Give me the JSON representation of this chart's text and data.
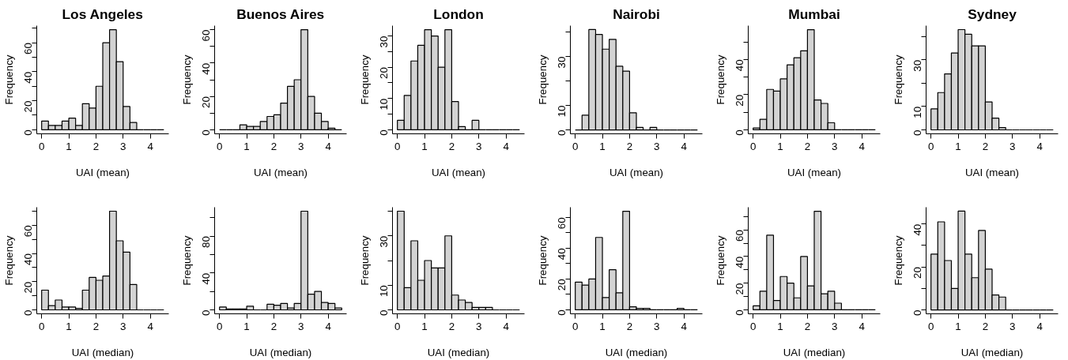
{
  "chart_data": [
    {
      "type": "histogram",
      "title": "Los Angeles",
      "xlabel": "UAI (mean)",
      "ylabel": "Frequency",
      "bins": [
        0,
        0.25,
        0.5,
        0.75,
        1,
        1.25,
        1.5,
        1.75,
        2,
        2.25,
        2.5,
        2.75,
        3,
        3.25,
        3.5,
        3.75,
        4,
        4.25,
        4.5
      ],
      "values": [
        6,
        3,
        3,
        6,
        8,
        3,
        18,
        15,
        30,
        60,
        69,
        47,
        16,
        5,
        0,
        0,
        0,
        0
      ],
      "colors": [
        "#d3d3d3",
        "#d3d3d3",
        "#d3d3d3",
        "#d3d3d3",
        "#d3d3d3",
        "#d3d3d3",
        "#d3d3d3",
        "#d3d3d3",
        "#d3d3d3",
        "#d3d3d3",
        "#d3d3d3",
        "#d3d3d3",
        "#d3d3d3",
        "#d3d3d3",
        "#000000",
        "#000000",
        "#000000",
        "#000000"
      ],
      "xlim": [
        -0.18,
        4.68
      ],
      "xticks": [
        0,
        1,
        2,
        3,
        4
      ],
      "ylim": [
        -2.8,
        71.8
      ],
      "yticks": [
        0,
        {
          "value": 10,
          "label": null
        },
        20,
        {
          "value": 30,
          "label": null
        },
        40,
        {
          "value": 50,
          "label": null
        },
        60,
        {
          "value": 70,
          "label": null
        }
      ],
      "grid": false
    },
    {
      "type": "histogram",
      "title": "Buenos Aires",
      "xlabel": "UAI (mean)",
      "ylabel": "Frequency",
      "bins": [
        0,
        0.25,
        0.5,
        0.75,
        1,
        1.25,
        1.5,
        1.75,
        2,
        2.25,
        2.5,
        2.75,
        3,
        3.25,
        3.5,
        3.75,
        4,
        4.25,
        4.5
      ],
      "values": [
        0,
        0,
        0,
        3,
        2,
        2,
        5,
        8,
        9,
        16,
        26,
        30,
        60,
        20,
        10,
        5,
        1,
        0
      ],
      "colors": [
        "#000000",
        "#000000",
        "#000000",
        "#d3d3d3",
        "#d3d3d3",
        "#d3d3d3",
        "#d3d3d3",
        "#d3d3d3",
        "#d3d3d3",
        "#d3d3d3",
        "#d3d3d3",
        "#d3d3d3",
        "#d3d3d3",
        "#d3d3d3",
        "#d3d3d3",
        "#d3d3d3",
        "#d3d3d3",
        "#000000"
      ],
      "xlim": [
        -0.18,
        4.68
      ],
      "xticks": [
        0,
        1,
        2,
        3,
        4
      ],
      "ylim": [
        -2.4,
        62.4
      ],
      "yticks": [
        0,
        {
          "value": 10,
          "label": null
        },
        20,
        {
          "value": 30,
          "label": null
        },
        40,
        {
          "value": 50,
          "label": null
        },
        60
      ],
      "grid": false
    },
    {
      "type": "histogram",
      "title": "London",
      "xlabel": "UAI (mean)",
      "ylabel": "Frequency",
      "bins": [
        0,
        0.25,
        0.5,
        0.75,
        1,
        1.25,
        1.5,
        1.75,
        2,
        2.25,
        2.5,
        2.75,
        3,
        3.25,
        3.5,
        3.75,
        4,
        4.25,
        4.5
      ],
      "values": [
        3,
        11,
        22,
        27,
        32,
        30,
        20,
        32,
        9,
        1,
        0,
        3,
        0,
        0,
        0,
        0,
        0,
        0
      ],
      "colors": [
        "#d3d3d3",
        "#d3d3d3",
        "#d3d3d3",
        "#d3d3d3",
        "#d3d3d3",
        "#d3d3d3",
        "#d3d3d3",
        "#d3d3d3",
        "#d3d3d3",
        "#d3d3d3",
        "#000000",
        "#d3d3d3",
        "#000000",
        "#000000",
        "#000000",
        "#000000",
        "#000000",
        "#000000"
      ],
      "xlim": [
        -0.18,
        4.68
      ],
      "xticks": [
        0,
        1,
        2,
        3,
        4
      ],
      "ylim": [
        -1.3,
        33.3
      ],
      "yticks": [
        0,
        {
          "value": 5,
          "label": null
        },
        10,
        {
          "value": 15,
          "label": null
        },
        20,
        {
          "value": 25,
          "label": null
        },
        30
      ],
      "grid": false
    },
    {
      "type": "histogram",
      "title": "Nairobi",
      "xlabel": "UAI (mean)",
      "ylabel": "Frequency",
      "bins": [
        0,
        0.25,
        0.5,
        0.75,
        1,
        1.25,
        1.5,
        1.75,
        2,
        2.25,
        2.5,
        2.75,
        3,
        3.25,
        3.5,
        3.75,
        4,
        4.25,
        4.5
      ],
      "values": [
        0,
        6,
        41,
        39,
        33,
        37,
        26,
        24,
        7,
        1,
        0,
        1,
        0,
        0,
        0,
        0,
        0,
        0
      ],
      "colors": [
        "#000000",
        "#d3d3d3",
        "#d3d3d3",
        "#d3d3d3",
        "#d3d3d3",
        "#d3d3d3",
        "#d3d3d3",
        "#d3d3d3",
        "#d3d3d3",
        "#d3d3d3",
        "#000000",
        "#d3d3d3",
        "#000000",
        "#000000",
        "#000000",
        "#000000",
        "#000000",
        "#000000"
      ],
      "xlim": [
        -0.18,
        4.68
      ],
      "xticks": [
        0,
        1,
        2,
        3,
        4
      ],
      "ylim": [
        -1.6,
        42.6
      ],
      "yticks": [
        0,
        10,
        {
          "value": 20,
          "label": null
        },
        30,
        {
          "value": 40,
          "label": null
        }
      ],
      "grid": false
    },
    {
      "type": "histogram",
      "title": "Mumbai",
      "xlabel": "UAI (mean)",
      "ylabel": "Frequency",
      "bins": [
        0,
        0.25,
        0.5,
        0.75,
        1,
        1.25,
        1.5,
        1.75,
        2,
        2.25,
        2.5,
        2.75,
        3,
        3.25,
        3.5,
        3.75,
        4,
        4.25,
        4.5
      ],
      "values": [
        1,
        6,
        23,
        22,
        29,
        37,
        41,
        45,
        57,
        17,
        15,
        4,
        0,
        0,
        0,
        0,
        0,
        0
      ],
      "colors": [
        "#d3d3d3",
        "#d3d3d3",
        "#d3d3d3",
        "#d3d3d3",
        "#d3d3d3",
        "#d3d3d3",
        "#d3d3d3",
        "#d3d3d3",
        "#d3d3d3",
        "#d3d3d3",
        "#d3d3d3",
        "#d3d3d3",
        "#000000",
        "#000000",
        "#000000",
        "#000000",
        "#000000",
        "#000000"
      ],
      "xlim": [
        -0.18,
        4.68
      ],
      "xticks": [
        0,
        1,
        2,
        3,
        4
      ],
      "ylim": [
        -2.3,
        59.3
      ],
      "yticks": [
        0,
        {
          "value": 10,
          "label": null
        },
        20,
        {
          "value": 30,
          "label": null
        },
        40,
        {
          "value": 50,
          "label": null
        }
      ],
      "grid": false
    },
    {
      "type": "histogram",
      "title": "Sydney",
      "xlabel": "UAI (mean)",
      "ylabel": "Frequency",
      "bins": [
        0,
        0.25,
        0.5,
        0.75,
        1,
        1.25,
        1.5,
        1.75,
        2,
        2.25,
        2.5,
        2.75,
        3,
        3.25,
        3.5,
        3.75,
        4,
        4.25,
        4.5
      ],
      "values": [
        9,
        16,
        24,
        33,
        43,
        41,
        36,
        36,
        12,
        5,
        1,
        0,
        0,
        0,
        0,
        0,
        0,
        0
      ],
      "colors": [
        "#d3d3d3",
        "#d3d3d3",
        "#d3d3d3",
        "#d3d3d3",
        "#d3d3d3",
        "#d3d3d3",
        "#d3d3d3",
        "#d3d3d3",
        "#d3d3d3",
        "#d3d3d3",
        "#d3d3d3",
        "#000000",
        "#000000",
        "#000000",
        "#000000",
        "#000000",
        "#000000",
        "#000000"
      ],
      "xlim": [
        -0.18,
        4.68
      ],
      "xticks": [
        0,
        1,
        2,
        3,
        4
      ],
      "ylim": [
        -1.7,
        44.7
      ],
      "yticks": [
        0,
        10,
        {
          "value": 20,
          "label": null
        },
        30,
        {
          "value": 40,
          "label": null
        }
      ],
      "grid": false
    },
    {
      "type": "histogram",
      "xlabel": "UAI (median)",
      "ylabel": "Frequency",
      "bins": [
        0,
        0.25,
        0.5,
        0.75,
        1,
        1.25,
        1.5,
        1.75,
        2,
        2.25,
        2.5,
        2.75,
        3,
        3.25,
        3.5,
        3.75,
        4,
        4.25,
        4.5
      ],
      "values": [
        14,
        3,
        7,
        2,
        2,
        1,
        14,
        23,
        21,
        24,
        70,
        49,
        41,
        18,
        0,
        0,
        0,
        0
      ],
      "colors": [
        "#d3d3d3",
        "#d3d3d3",
        "#d3d3d3",
        "#d3d3d3",
        "#d3d3d3",
        "#d3d3d3",
        "#d3d3d3",
        "#d3d3d3",
        "#d3d3d3",
        "#d3d3d3",
        "#d3d3d3",
        "#d3d3d3",
        "#d3d3d3",
        "#d3d3d3",
        "#000000",
        "#000000",
        "#000000",
        "#000000"
      ],
      "xlim": [
        -0.18,
        4.68
      ],
      "xticks": [
        0,
        1,
        2,
        3,
        4
      ],
      "ylim": [
        -2.8,
        72.8
      ],
      "yticks": [
        0,
        {
          "value": 10,
          "label": null
        },
        20,
        {
          "value": 30,
          "label": null
        },
        40,
        {
          "value": 50,
          "label": null
        },
        60,
        {
          "value": 70,
          "label": null
        }
      ],
      "grid": false
    },
    {
      "type": "histogram",
      "xlabel": "UAI (median)",
      "ylabel": "Frequency",
      "bins": [
        0,
        0.25,
        0.5,
        0.75,
        1,
        1.25,
        1.5,
        1.75,
        2,
        2.25,
        2.5,
        2.75,
        3,
        3.25,
        3.5,
        3.75,
        4,
        4.25,
        4.5
      ],
      "values": [
        3,
        1,
        1,
        1,
        4,
        0,
        0,
        6,
        5,
        7,
        2,
        7,
        107,
        17,
        20,
        8,
        7,
        2
      ],
      "colors": [
        "#d3d3d3",
        "#d3d3d3",
        "#d3d3d3",
        "#d3d3d3",
        "#d3d3d3",
        "#000000",
        "#000000",
        "#d3d3d3",
        "#d3d3d3",
        "#d3d3d3",
        "#d3d3d3",
        "#d3d3d3",
        "#d3d3d3",
        "#d3d3d3",
        "#d3d3d3",
        "#d3d3d3",
        "#d3d3d3",
        "#d3d3d3"
      ],
      "xlim": [
        -0.18,
        4.68
      ],
      "xticks": [
        0,
        1,
        2,
        3,
        4
      ],
      "ylim": [
        -4.3,
        111.3
      ],
      "yticks": [
        0,
        {
          "value": 20,
          "label": null
        },
        40,
        {
          "value": 60,
          "label": null
        },
        80,
        {
          "value": 100,
          "label": null
        }
      ],
      "grid": false
    },
    {
      "type": "histogram",
      "xlabel": "UAI (median)",
      "ylabel": "Frequency",
      "bins": [
        0,
        0.25,
        0.5,
        0.75,
        1,
        1.25,
        1.5,
        1.75,
        2,
        2.25,
        2.5,
        2.75,
        3,
        3.25,
        3.5,
        3.75,
        4,
        4.25,
        4.5
      ],
      "values": [
        40,
        9,
        28,
        12,
        20,
        17,
        17,
        30,
        6,
        4,
        3,
        1,
        1,
        1,
        0,
        0,
        0,
        0
      ],
      "colors": [
        "#d3d3d3",
        "#d3d3d3",
        "#d3d3d3",
        "#d3d3d3",
        "#d3d3d3",
        "#d3d3d3",
        "#d3d3d3",
        "#d3d3d3",
        "#d3d3d3",
        "#d3d3d3",
        "#d3d3d3",
        "#d3d3d3",
        "#d3d3d3",
        "#d3d3d3",
        "#000000",
        "#000000",
        "#000000",
        "#000000"
      ],
      "xlim": [
        -0.18,
        4.68
      ],
      "xticks": [
        0,
        1,
        2,
        3,
        4
      ],
      "ylim": [
        -1.6,
        41.6
      ],
      "yticks": [
        0,
        10,
        {
          "value": 20,
          "label": null
        },
        30,
        {
          "value": 40,
          "label": null
        }
      ],
      "grid": false
    },
    {
      "type": "histogram",
      "xlabel": "UAI (median)",
      "ylabel": "Frequency",
      "bins": [
        0,
        0.25,
        0.5,
        0.75,
        1,
        1.25,
        1.5,
        1.75,
        2,
        2.25,
        2.5,
        2.75,
        3,
        3.25,
        3.5,
        3.75,
        4,
        4.25,
        4.5
      ],
      "values": [
        18,
        16,
        20,
        47,
        8,
        26,
        11,
        64,
        2,
        1,
        1,
        0,
        0,
        0,
        0,
        1,
        0,
        0
      ],
      "colors": [
        "#d3d3d3",
        "#d3d3d3",
        "#d3d3d3",
        "#d3d3d3",
        "#d3d3d3",
        "#d3d3d3",
        "#d3d3d3",
        "#d3d3d3",
        "#d3d3d3",
        "#d3d3d3",
        "#d3d3d3",
        "#000000",
        "#000000",
        "#000000",
        "#000000",
        "#d3d3d3",
        "#000000",
        "#000000"
      ],
      "xlim": [
        -0.18,
        4.68
      ],
      "xticks": [
        0,
        1,
        2,
        3,
        4
      ],
      "ylim": [
        -2.6,
        66.6
      ],
      "yticks": [
        0,
        {
          "value": 10,
          "label": null
        },
        20,
        {
          "value": 30,
          "label": null
        },
        40,
        {
          "value": 50,
          "label": null
        },
        60
      ],
      "grid": false
    },
    {
      "type": "histogram",
      "xlabel": "UAI (median)",
      "ylabel": "Frequency",
      "bins": [
        0,
        0.25,
        0.5,
        0.75,
        1,
        1.25,
        1.5,
        1.75,
        2,
        2.25,
        2.5,
        2.75,
        3,
        3.25,
        3.5,
        3.75,
        4,
        4.25,
        4.5
      ],
      "values": [
        3,
        14,
        56,
        7,
        25,
        20,
        9,
        40,
        18,
        74,
        12,
        14,
        5,
        0,
        0,
        0,
        0,
        0
      ],
      "colors": [
        "#d3d3d3",
        "#d3d3d3",
        "#d3d3d3",
        "#d3d3d3",
        "#d3d3d3",
        "#d3d3d3",
        "#d3d3d3",
        "#d3d3d3",
        "#d3d3d3",
        "#d3d3d3",
        "#d3d3d3",
        "#d3d3d3",
        "#d3d3d3",
        "#000000",
        "#000000",
        "#000000",
        "#000000",
        "#000000"
      ],
      "xlim": [
        -0.18,
        4.68
      ],
      "xticks": [
        0,
        1,
        2,
        3,
        4
      ],
      "ylim": [
        -3,
        77
      ],
      "yticks": [
        0,
        {
          "value": 10,
          "label": null
        },
        20,
        {
          "value": 30,
          "label": null
        },
        40,
        {
          "value": 50,
          "label": null
        },
        60,
        {
          "value": 70,
          "label": null
        }
      ],
      "grid": false
    },
    {
      "type": "histogram",
      "xlabel": "UAI (median)",
      "ylabel": "Frequency",
      "bins": [
        0,
        0.25,
        0.5,
        0.75,
        1,
        1.25,
        1.5,
        1.75,
        2,
        2.25,
        2.5,
        2.75,
        3,
        3.25,
        3.5,
        3.75,
        4,
        4.25,
        4.5
      ],
      "values": [
        26,
        41,
        23,
        10,
        46,
        26,
        15,
        37,
        19,
        7,
        6,
        0,
        0,
        0,
        0,
        0,
        0,
        0
      ],
      "colors": [
        "#d3d3d3",
        "#d3d3d3",
        "#d3d3d3",
        "#d3d3d3",
        "#d3d3d3",
        "#d3d3d3",
        "#d3d3d3",
        "#d3d3d3",
        "#d3d3d3",
        "#d3d3d3",
        "#d3d3d3",
        "#000000",
        "#000000",
        "#000000",
        "#000000",
        "#000000",
        "#000000",
        "#000000"
      ],
      "xlim": [
        -0.18,
        4.68
      ],
      "xticks": [
        0,
        1,
        2,
        3,
        4
      ],
      "ylim": [
        -1.8,
        47.8
      ],
      "yticks": [
        0,
        {
          "value": 10,
          "label": null
        },
        20,
        {
          "value": 30,
          "label": null
        },
        40
      ],
      "grid": false
    }
  ]
}
